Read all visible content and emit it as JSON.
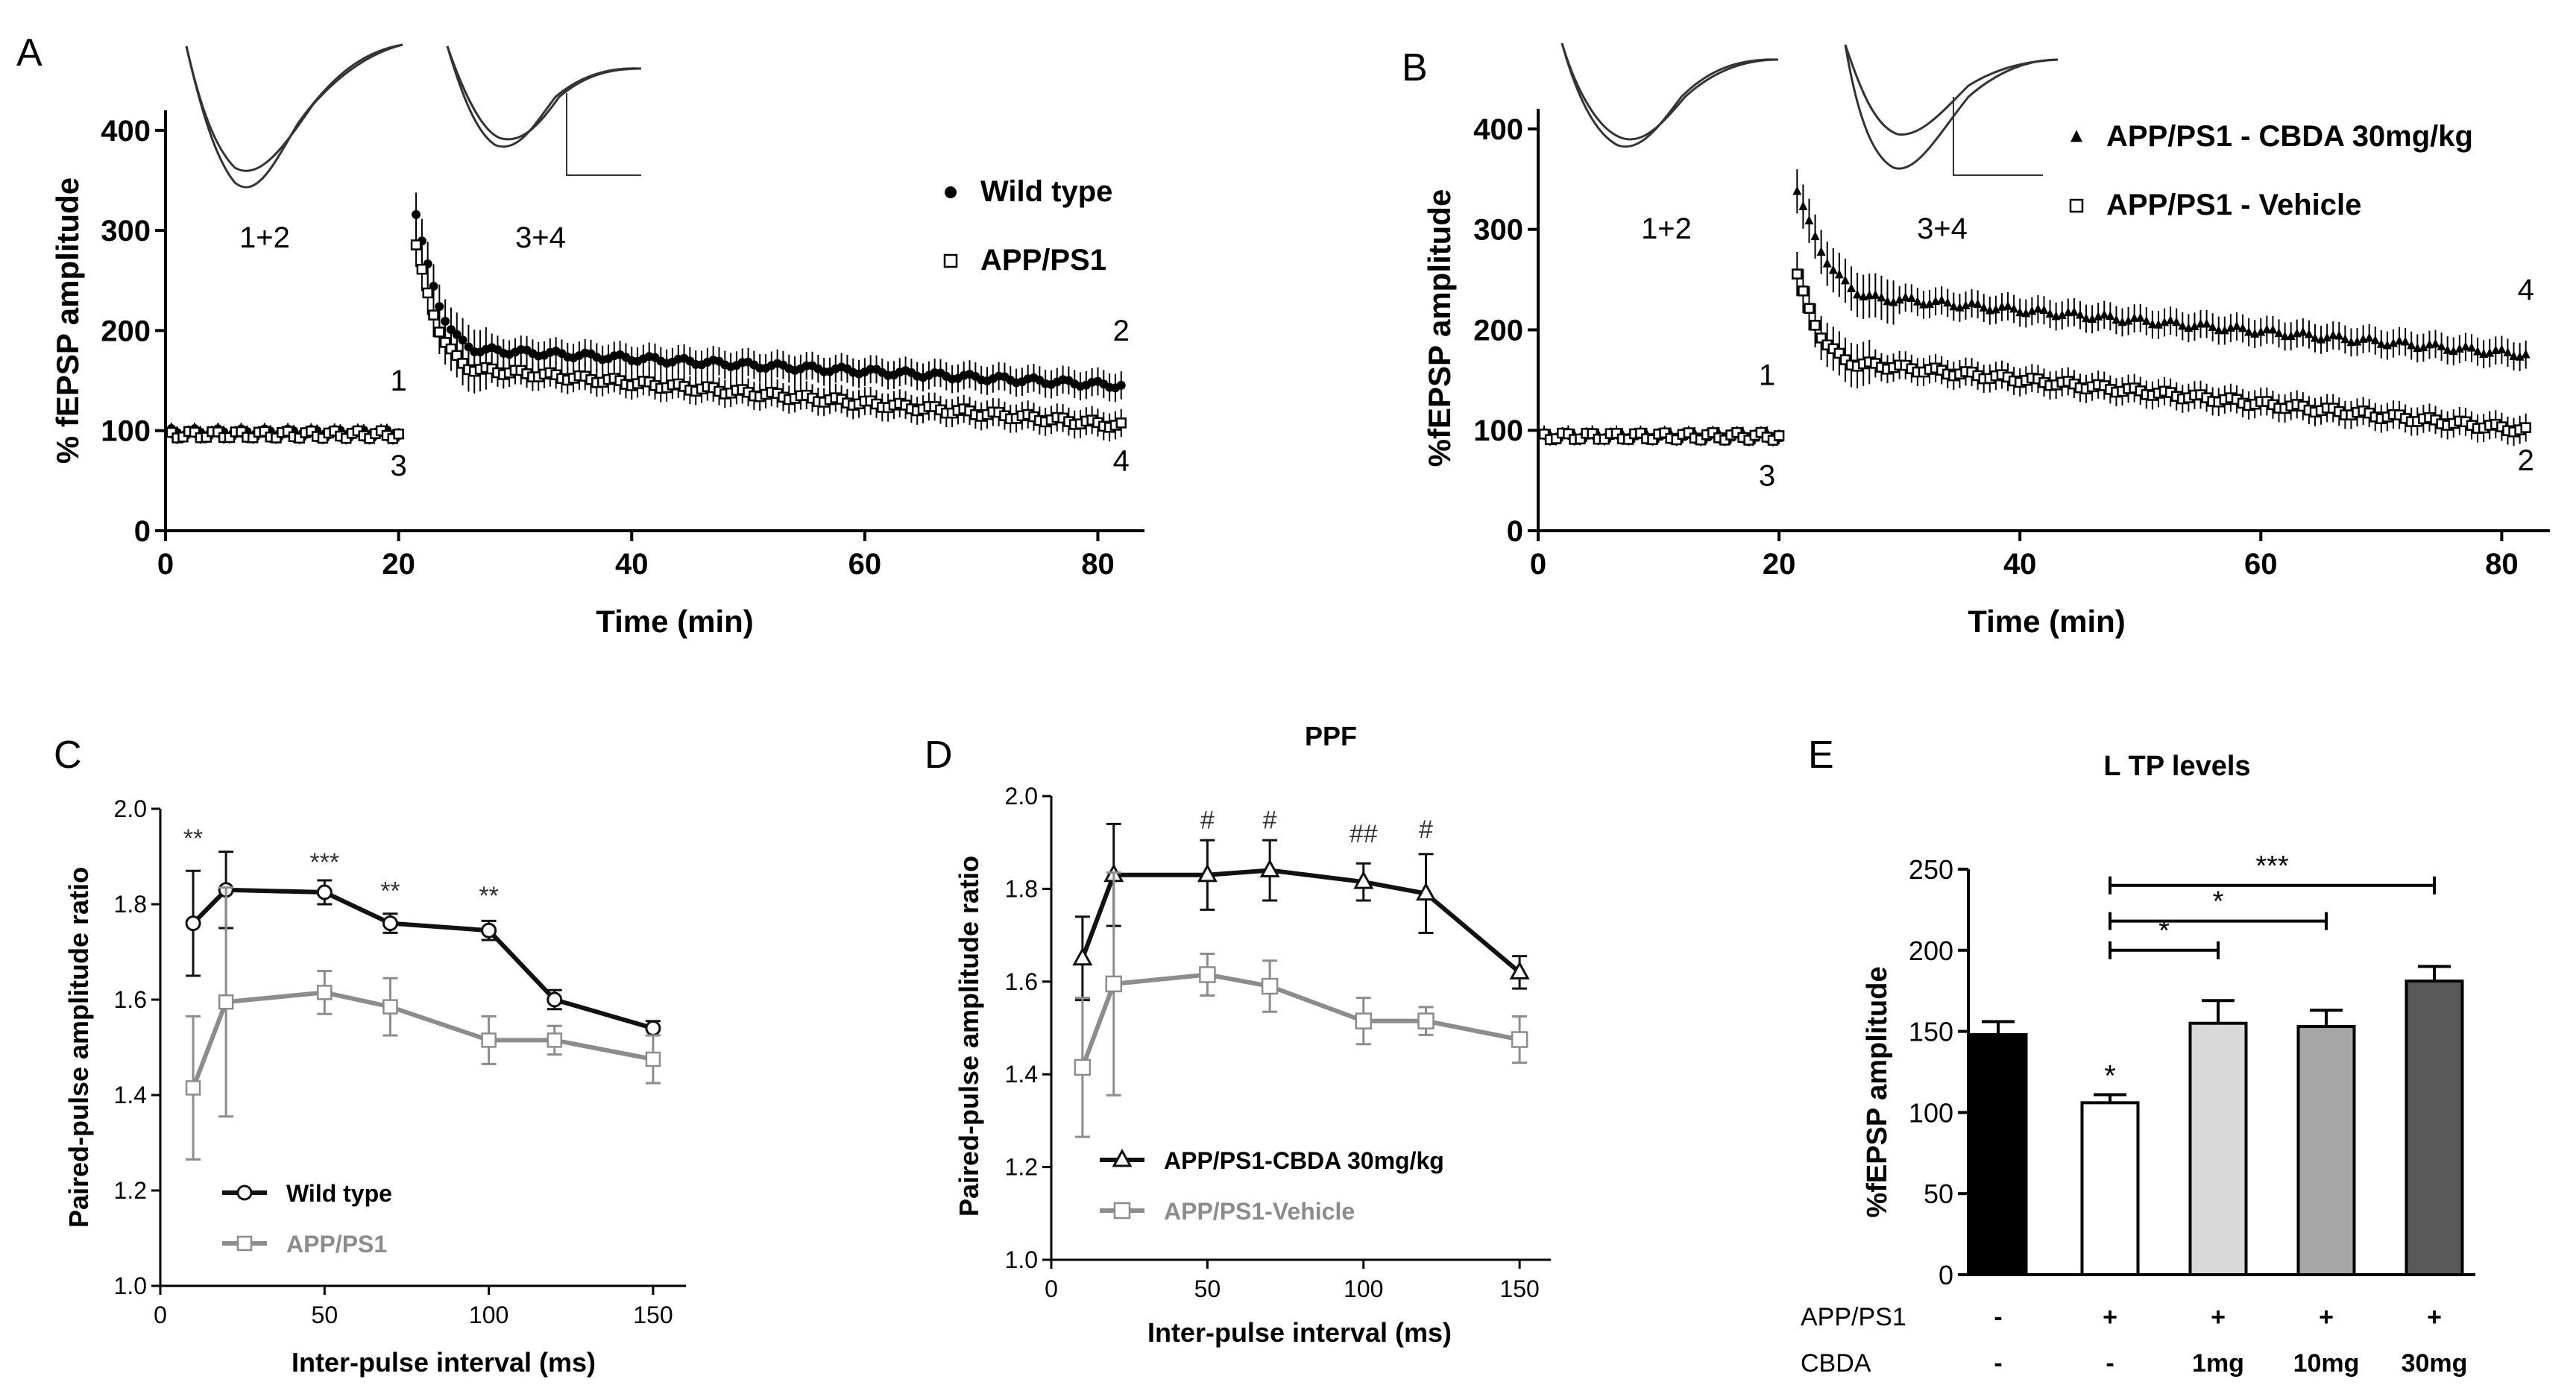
{
  "figure": {
    "panel_letters": [
      "A",
      "B",
      "C",
      "D",
      "E"
    ]
  },
  "chart_data": [
    {
      "panel": "A",
      "type": "scatter",
      "xlabel": "Time (min)",
      "ylabel": "% fEPSP amplitude",
      "xlim": [
        0,
        84
      ],
      "ylim": [
        0,
        420
      ],
      "xticks": [
        0,
        20,
        40,
        60,
        80
      ],
      "yticks": [
        0,
        100,
        200,
        300,
        400
      ],
      "inset_labels": [
        "1+2",
        "3+4"
      ],
      "point_labels": [
        {
          "text": "1",
          "x": 20,
          "y": 140
        },
        {
          "text": "3",
          "x": 20,
          "y": 55
        },
        {
          "text": "2",
          "x": 82,
          "y": 190
        },
        {
          "text": "4",
          "x": 82,
          "y": 60
        }
      ],
      "series": [
        {
          "name": "Wild type",
          "marker": "filled-circle",
          "baseline": 98,
          "post": {
            "start": 21.5,
            "peak": 318,
            "tail_at": 28,
            "tail_value": 180,
            "end": 145
          }
        },
        {
          "name": "APP/PS1",
          "marker": "open-square",
          "baseline": 96,
          "post": {
            "start": 21.5,
            "peak": 285,
            "tail_at": 28,
            "tail_value": 160,
            "end": 105
          }
        }
      ]
    },
    {
      "panel": "B",
      "type": "scatter",
      "xlabel": "Time (min)",
      "ylabel": "%fEPSP amplitude",
      "xlim": [
        0,
        84
      ],
      "ylim": [
        0,
        420
      ],
      "xticks": [
        0,
        20,
        40,
        60,
        80
      ],
      "yticks": [
        0,
        100,
        200,
        300,
        400
      ],
      "inset_labels": [
        "1+2",
        "3+4"
      ],
      "point_labels": [
        {
          "text": "1",
          "x": 19,
          "y": 145
        },
        {
          "text": "3",
          "x": 19,
          "y": 45
        },
        {
          "text": "4",
          "x": 82,
          "y": 230
        },
        {
          "text": "2",
          "x": 82,
          "y": 60
        }
      ],
      "series": [
        {
          "name": "APP/PS1 - CBDA 30mg/kg",
          "marker": "filled-triangle",
          "baseline": 95,
          "post": {
            "start": 21.5,
            "peak": 340,
            "tail_at": 30,
            "tail_value": 230,
            "end": 175
          }
        },
        {
          "name": "APP/PS1 - Vehicle",
          "marker": "open-square",
          "baseline": 94,
          "post": {
            "start": 21.5,
            "peak": 255,
            "tail_at": 28,
            "tail_value": 165,
            "end": 100
          }
        }
      ]
    },
    {
      "panel": "C",
      "type": "line",
      "xlabel": "Inter-pulse interval (ms)",
      "ylabel": "Paired-pulse amplitude ratio",
      "xlim": [
        0,
        160
      ],
      "ylim": [
        1.0,
        2.0
      ],
      "xticks": [
        0,
        50,
        100,
        150
      ],
      "yticks": [
        1.0,
        1.2,
        1.4,
        1.6,
        1.8,
        2.0
      ],
      "ytick_labels": [
        "1.0",
        "1.2",
        "1.4",
        "1.6",
        "1.8",
        "2.0"
      ],
      "x": [
        10,
        20,
        50,
        70,
        100,
        120,
        150
      ],
      "series": [
        {
          "name": "Wild type",
          "color": "#111111",
          "marker": "open-circle",
          "values": [
            1.76,
            1.83,
            1.825,
            1.76,
            1.745,
            1.6,
            1.54
          ],
          "errors": [
            0.11,
            0.08,
            0.025,
            0.02,
            0.02,
            0.02,
            0.015
          ]
        },
        {
          "name": "APP/PS1",
          "color": "#8c8c8c",
          "marker": "open-square",
          "values": [
            1.415,
            1.595,
            1.615,
            1.585,
            1.515,
            1.515,
            1.475
          ],
          "errors": [
            0.15,
            0.24,
            0.045,
            0.06,
            0.05,
            0.03,
            0.05
          ]
        }
      ],
      "annotations": [
        {
          "text": "**",
          "x": 10,
          "y": 1.92
        },
        {
          "text": "***",
          "x": 50,
          "y": 1.87
        },
        {
          "text": "**",
          "x": 70,
          "y": 1.81
        },
        {
          "text": "**",
          "x": 100,
          "y": 1.8
        }
      ],
      "legend": "bottom-left"
    },
    {
      "panel": "D",
      "type": "line",
      "title": "PPF",
      "xlabel": "Inter-pulse interval (ms)",
      "ylabel": "Paired-pulse amplitude ratio",
      "xlim": [
        0,
        160
      ],
      "ylim": [
        1.0,
        2.0
      ],
      "xticks": [
        0,
        50,
        100,
        150
      ],
      "yticks": [
        1.0,
        1.2,
        1.4,
        1.6,
        1.8,
        2.0
      ],
      "ytick_labels": [
        "1.0",
        "1.2",
        "1.4",
        "1.6",
        "1.8",
        "2.0"
      ],
      "x": [
        10,
        20,
        50,
        70,
        100,
        120,
        150
      ],
      "series": [
        {
          "name": "APP/PS1-CBDA 30mg/kg",
          "color": "#111111",
          "marker": "open-triangle",
          "values": [
            1.65,
            1.83,
            1.83,
            1.84,
            1.815,
            1.79,
            1.62
          ],
          "errors": [
            0.09,
            0.11,
            0.075,
            0.065,
            0.04,
            0.085,
            0.035
          ]
        },
        {
          "name": "APP/PS1-Vehicle",
          "color": "#8c8c8c",
          "marker": "open-square",
          "values": [
            1.415,
            1.595,
            1.615,
            1.59,
            1.515,
            1.515,
            1.475
          ],
          "errors": [
            0.15,
            0.24,
            0.045,
            0.055,
            0.05,
            0.03,
            0.05
          ]
        }
      ],
      "annotations": [
        {
          "text": "#",
          "x": 50,
          "y": 1.93
        },
        {
          "text": "#",
          "x": 70,
          "y": 1.93
        },
        {
          "text": "##",
          "x": 100,
          "y": 1.9
        },
        {
          "text": "#",
          "x": 120,
          "y": 1.91
        }
      ],
      "legend": "bottom-left"
    },
    {
      "panel": "E",
      "type": "bar",
      "title": "L TP levels",
      "ylabel": "%fEPSP amplitude",
      "ylim": [
        0,
        250
      ],
      "yticks": [
        0,
        50,
        100,
        150,
        200,
        250
      ],
      "values": [
        148,
        106,
        155,
        153,
        181
      ],
      "errors": [
        8,
        5,
        14,
        10,
        9
      ],
      "colors": [
        "#000000",
        "#ffffff",
        "#d9d9d9",
        "#a6a6a6",
        "#595959"
      ],
      "bar_marks": [
        "",
        "*",
        "",
        "",
        ""
      ],
      "table_rows": [
        {
          "label": "APP/PS1",
          "cells": [
            "-",
            "+",
            "+",
            "+",
            "+"
          ]
        },
        {
          "label": "CBDA",
          "cells": [
            "-",
            "-",
            "1mg",
            "10mg",
            "30mg"
          ]
        }
      ],
      "comparisons": [
        {
          "from": 1,
          "to": 2,
          "label": "*",
          "y": 200
        },
        {
          "from": 1,
          "to": 3,
          "label": "*",
          "y": 218
        },
        {
          "from": 1,
          "to": 4,
          "label": "***",
          "y": 240
        }
      ]
    }
  ]
}
